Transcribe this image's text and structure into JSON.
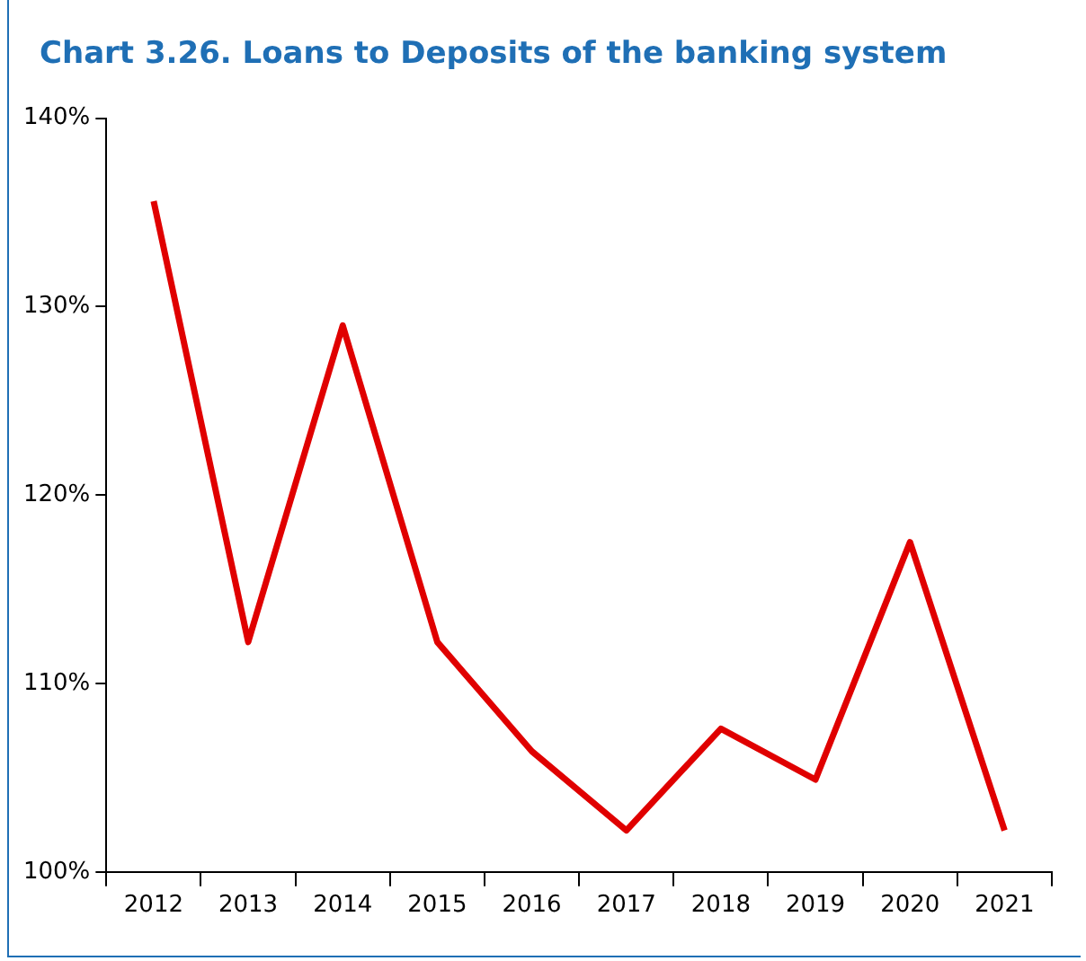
{
  "chart_data": {
    "type": "line",
    "title": "Chart 3.26. Loans to Deposits of the banking system",
    "categories": [
      "2012",
      "2013",
      "2014",
      "2015",
      "2016",
      "2017",
      "2018",
      "2019",
      "2020",
      "2021"
    ],
    "series": [
      {
        "color": "#e00000",
        "values": [
          135.6,
          112.2,
          129.0,
          112.2,
          106.4,
          102.2,
          107.6,
          104.9,
          117.5,
          102.2
        ]
      }
    ],
    "ylim": [
      100,
      140
    ],
    "yticks": [
      {
        "value": 100,
        "label": "100%"
      },
      {
        "value": 110,
        "label": "110%"
      },
      {
        "value": 120,
        "label": "120%"
      },
      {
        "value": 130,
        "label": "130%"
      },
      {
        "value": 140,
        "label": "140%"
      }
    ],
    "grid": false,
    "legend": false,
    "marker": "none",
    "line_style": "solid"
  }
}
